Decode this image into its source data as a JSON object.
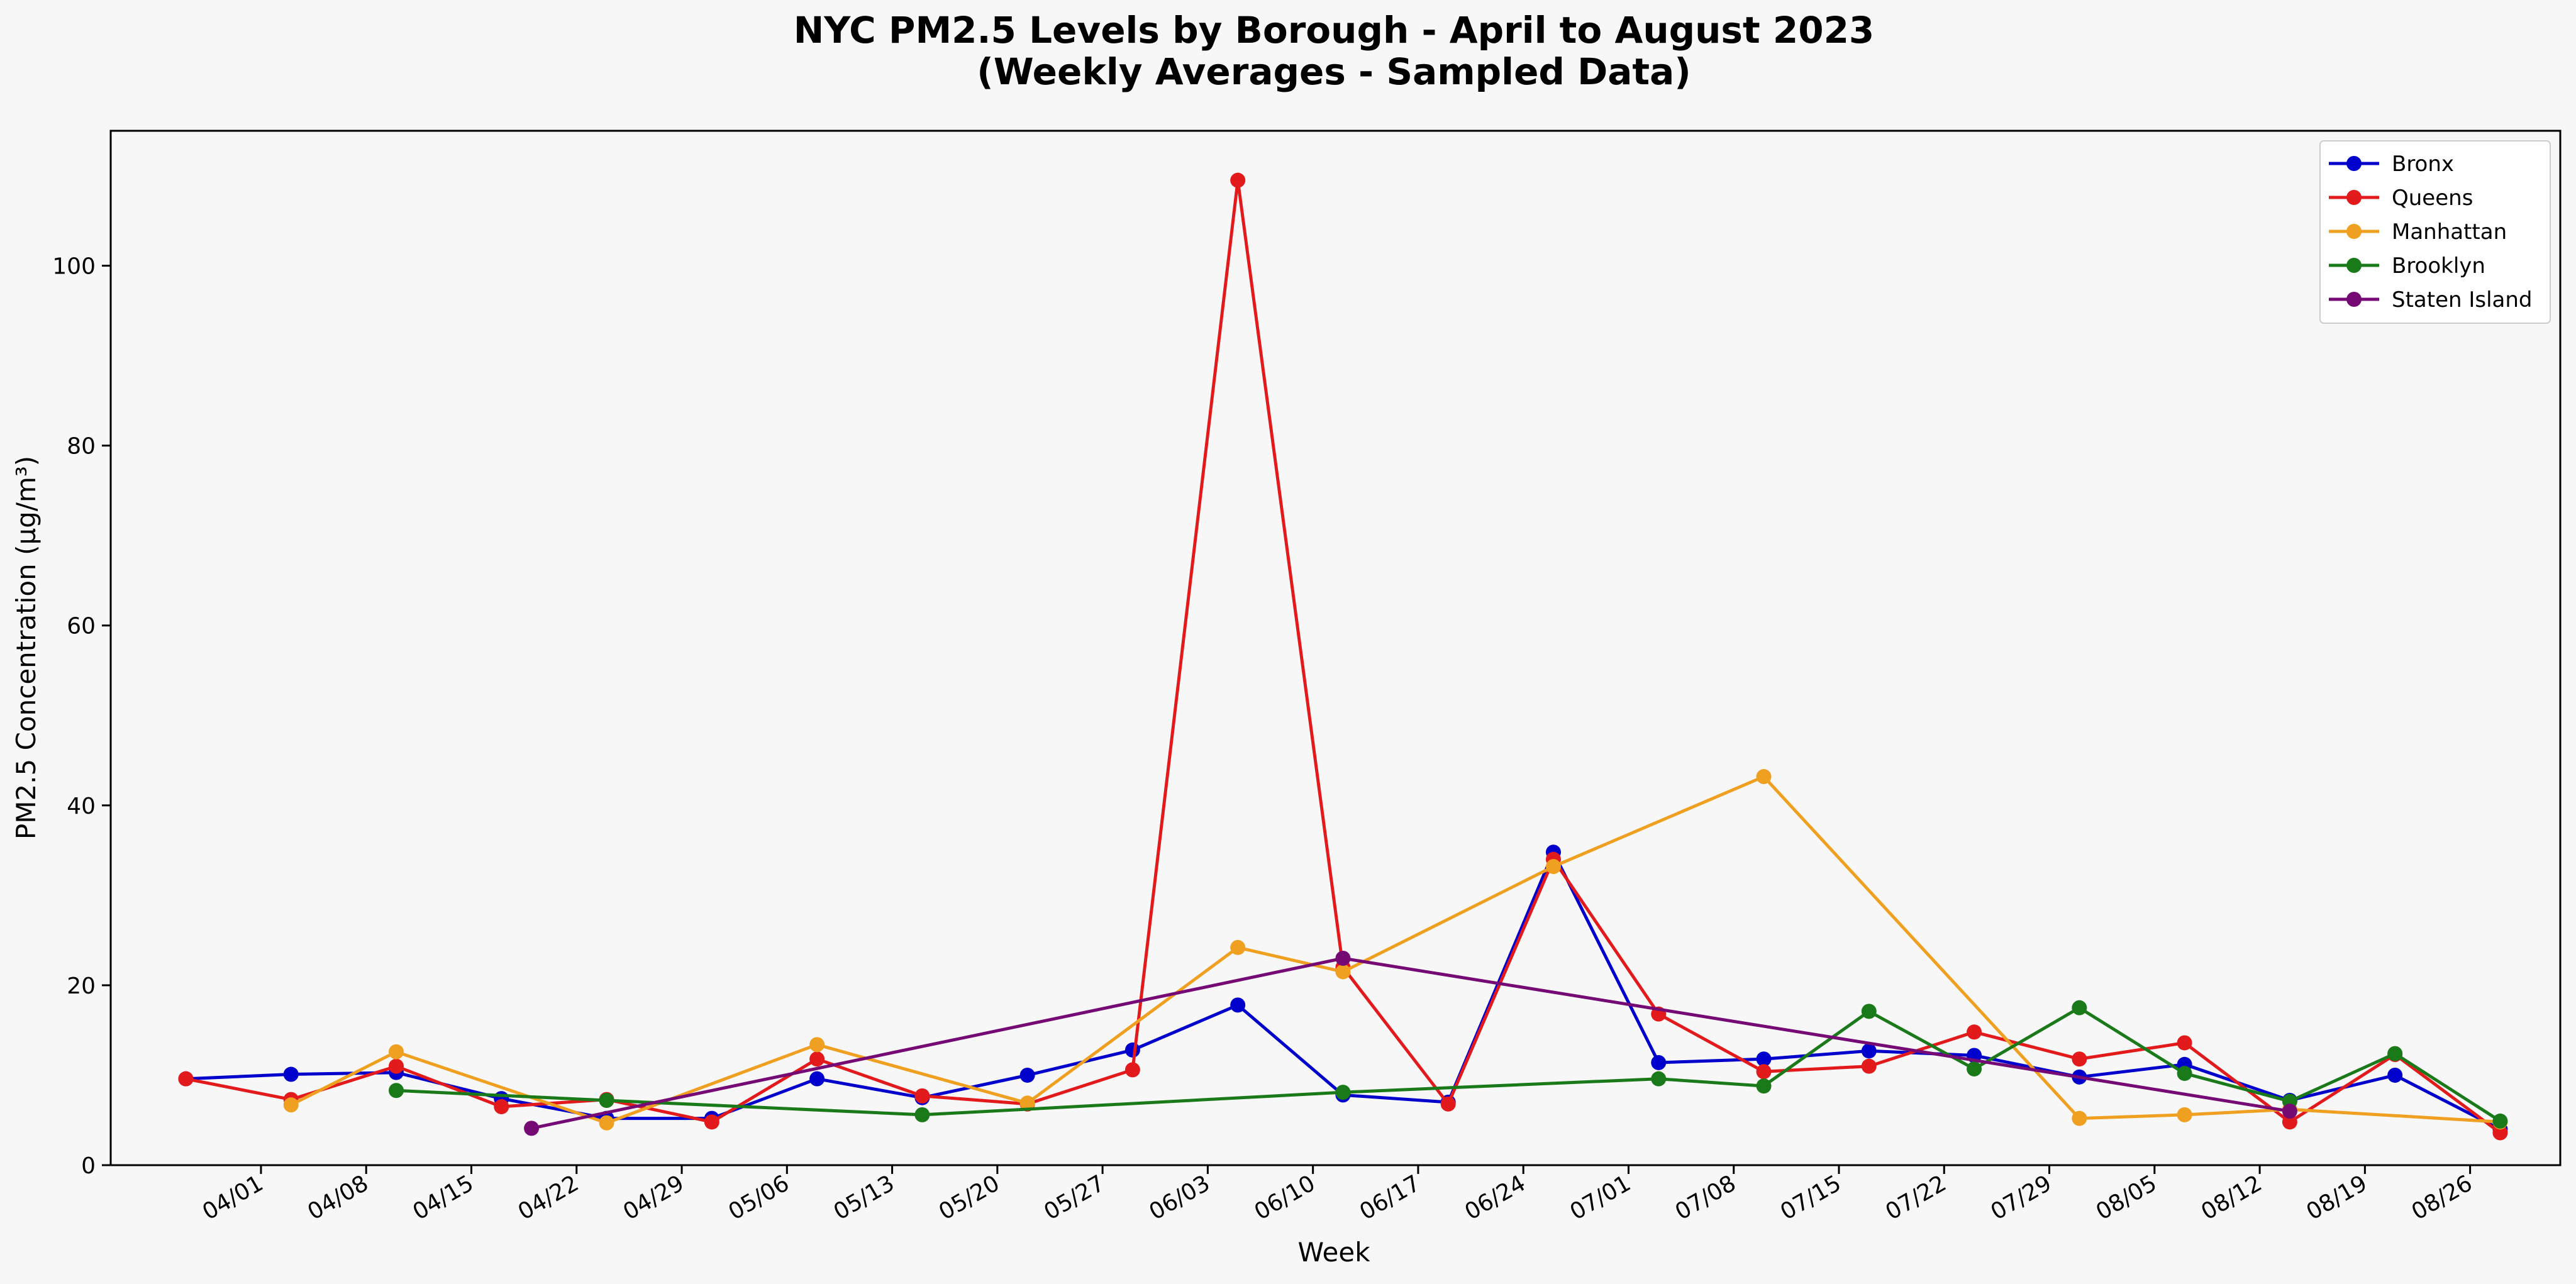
{
  "chart_data": {
    "type": "line",
    "title": "NYC PM2.5 Levels by Borough - April to August 2023",
    "subtitle": "(Weekly Averages - Sampled Data)",
    "xlabel": "Week",
    "ylabel": "PM2.5 Concentration (µg/m³)",
    "ylim": [
      0,
      115
    ],
    "yticks": [
      0,
      20,
      40,
      60,
      80,
      100
    ],
    "xlim": [
      "2023-03-22",
      "2023-09-01"
    ],
    "xtick_labels": [
      "04/01",
      "04/08",
      "04/15",
      "04/22",
      "04/29",
      "05/06",
      "05/13",
      "05/20",
      "05/27",
      "06/03",
      "06/10",
      "06/17",
      "06/24",
      "07/01",
      "07/08",
      "07/15",
      "07/22",
      "07/29",
      "08/05",
      "08/12",
      "08/19",
      "08/26"
    ],
    "xtick_dates": [
      "2023-04-01",
      "2023-04-08",
      "2023-04-15",
      "2023-04-22",
      "2023-04-29",
      "2023-05-06",
      "2023-05-13",
      "2023-05-20",
      "2023-05-27",
      "2023-06-03",
      "2023-06-10",
      "2023-06-17",
      "2023-06-24",
      "2023-07-01",
      "2023-07-08",
      "2023-07-15",
      "2023-07-22",
      "2023-07-29",
      "2023-08-05",
      "2023-08-12",
      "2023-08-19",
      "2023-08-26"
    ],
    "grid": false,
    "legend_position": "top-right",
    "series": [
      {
        "name": "Bronx",
        "color": "#0000cd",
        "points": [
          {
            "x": "2023-03-27",
            "y": 9.6
          },
          {
            "x": "2023-04-03",
            "y": 10.1
          },
          {
            "x": "2023-04-10",
            "y": 10.3
          },
          {
            "x": "2023-04-17",
            "y": 7.4
          },
          {
            "x": "2023-04-24",
            "y": 5.2
          },
          {
            "x": "2023-05-01",
            "y": 5.2
          },
          {
            "x": "2023-05-08",
            "y": 9.6
          },
          {
            "x": "2023-05-15",
            "y": 7.5
          },
          {
            "x": "2023-05-22",
            "y": 10.0
          },
          {
            "x": "2023-05-29",
            "y": 12.8
          },
          {
            "x": "2023-06-05",
            "y": 17.8
          },
          {
            "x": "2023-06-12",
            "y": 7.8
          },
          {
            "x": "2023-06-19",
            "y": 7.0
          },
          {
            "x": "2023-06-26",
            "y": 34.8
          },
          {
            "x": "2023-07-03",
            "y": 11.4
          },
          {
            "x": "2023-07-10",
            "y": 11.8
          },
          {
            "x": "2023-07-17",
            "y": 12.7
          },
          {
            "x": "2023-07-24",
            "y": 12.2
          },
          {
            "x": "2023-07-31",
            "y": 9.8
          },
          {
            "x": "2023-08-07",
            "y": 11.2
          },
          {
            "x": "2023-08-14",
            "y": 7.2
          },
          {
            "x": "2023-08-21",
            "y": 10.0
          },
          {
            "x": "2023-08-28",
            "y": 4.0
          }
        ]
      },
      {
        "name": "Queens",
        "color": "#e31a1c",
        "points": [
          {
            "x": "2023-03-27",
            "y": 9.6
          },
          {
            "x": "2023-04-03",
            "y": 7.3
          },
          {
            "x": "2023-04-10",
            "y": 11.0
          },
          {
            "x": "2023-04-17",
            "y": 6.5
          },
          {
            "x": "2023-04-24",
            "y": 7.3
          },
          {
            "x": "2023-05-01",
            "y": 4.8
          },
          {
            "x": "2023-05-08",
            "y": 11.8
          },
          {
            "x": "2023-05-15",
            "y": 7.7
          },
          {
            "x": "2023-05-22",
            "y": 6.8
          },
          {
            "x": "2023-05-29",
            "y": 10.6
          },
          {
            "x": "2023-06-05",
            "y": 109.5
          },
          {
            "x": "2023-06-12",
            "y": 22.0
          },
          {
            "x": "2023-06-19",
            "y": 6.8
          },
          {
            "x": "2023-06-26",
            "y": 34.0
          },
          {
            "x": "2023-07-03",
            "y": 16.8
          },
          {
            "x": "2023-07-10",
            "y": 10.4
          },
          {
            "x": "2023-07-17",
            "y": 11.0
          },
          {
            "x": "2023-07-24",
            "y": 14.8
          },
          {
            "x": "2023-07-31",
            "y": 11.8
          },
          {
            "x": "2023-08-07",
            "y": 13.6
          },
          {
            "x": "2023-08-14",
            "y": 4.8
          },
          {
            "x": "2023-08-21",
            "y": 12.3
          },
          {
            "x": "2023-08-28",
            "y": 3.6
          }
        ]
      },
      {
        "name": "Manhattan",
        "color": "#f0a020",
        "points": [
          {
            "x": "2023-04-03",
            "y": 6.7
          },
          {
            "x": "2023-04-10",
            "y": 12.6
          },
          {
            "x": "2023-04-24",
            "y": 4.7
          },
          {
            "x": "2023-05-08",
            "y": 13.4
          },
          {
            "x": "2023-05-22",
            "y": 6.9
          },
          {
            "x": "2023-06-05",
            "y": 24.2
          },
          {
            "x": "2023-06-12",
            "y": 21.5
          },
          {
            "x": "2023-06-26",
            "y": 33.2
          },
          {
            "x": "2023-07-10",
            "y": 43.2
          },
          {
            "x": "2023-07-31",
            "y": 5.2
          },
          {
            "x": "2023-08-07",
            "y": 5.6
          },
          {
            "x": "2023-08-14",
            "y": 6.2
          },
          {
            "x": "2023-08-28",
            "y": 4.8
          }
        ]
      },
      {
        "name": "Brooklyn",
        "color": "#1a7a1a",
        "points": [
          {
            "x": "2023-04-10",
            "y": 8.3
          },
          {
            "x": "2023-04-24",
            "y": 7.2
          },
          {
            "x": "2023-05-15",
            "y": 5.6
          },
          {
            "x": "2023-06-12",
            "y": 8.1
          },
          {
            "x": "2023-07-03",
            "y": 9.6
          },
          {
            "x": "2023-07-10",
            "y": 8.8
          },
          {
            "x": "2023-07-17",
            "y": 17.1
          },
          {
            "x": "2023-07-24",
            "y": 10.7
          },
          {
            "x": "2023-07-31",
            "y": 17.5
          },
          {
            "x": "2023-08-07",
            "y": 10.2
          },
          {
            "x": "2023-08-14",
            "y": 7.1
          },
          {
            "x": "2023-08-21",
            "y": 12.4
          },
          {
            "x": "2023-08-28",
            "y": 4.9
          }
        ]
      },
      {
        "name": "Staten Island",
        "color": "#750a75",
        "points": [
          {
            "x": "2023-04-19",
            "y": 4.1
          },
          {
            "x": "2023-06-12",
            "y": 23.0
          },
          {
            "x": "2023-08-14",
            "y": 6.0
          }
        ]
      }
    ]
  }
}
